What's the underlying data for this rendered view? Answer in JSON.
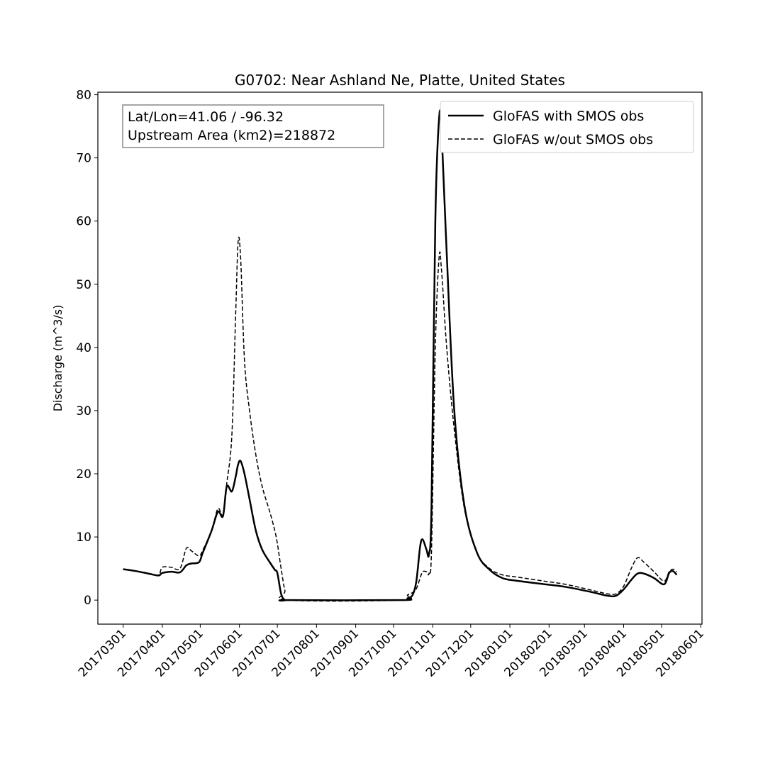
{
  "chart_data": {
    "type": "line",
    "title": "G0702: Near Ashland Ne, Platte, United States",
    "xlabel": "",
    "ylabel": "Discharge (m^3/s)",
    "xlim": [
      "20170209",
      "20180602"
    ],
    "ylim": [
      -3.8,
      80.4
    ],
    "grid": false,
    "legend_position": "top-right",
    "yticks": [
      0,
      10,
      20,
      30,
      40,
      50,
      60,
      70,
      80
    ],
    "xticks": [
      "20170301",
      "20170401",
      "20170501",
      "20170601",
      "20170701",
      "20170801",
      "20170901",
      "20171001",
      "20171101",
      "20171201",
      "20180101",
      "20180201",
      "20180301",
      "20180401",
      "20180501",
      "20180601"
    ],
    "annotation": [
      "Lat/Lon=41.06 / -96.32",
      "Upstream Area (km2)=218872"
    ],
    "x": [
      "20170301",
      "20170311",
      "20170321",
      "20170329",
      "20170401",
      "20170408",
      "20170415",
      "20170420",
      "20170424",
      "20170430",
      "20170503",
      "20170510",
      "20170515",
      "20170519",
      "20170522",
      "20170526",
      "20170529",
      "20170531",
      "20170602",
      "20170605",
      "20170609",
      "20170614",
      "20170619",
      "20170625",
      "20170629",
      "20170701",
      "20170704",
      "20170707",
      "20170710",
      "20171007",
      "20171012",
      "20171016",
      "20171019",
      "20171022",
      "20171024",
      "20171027",
      "20171029",
      "20171031",
      "20171103",
      "20171106",
      "20171108",
      "20171112",
      "20171118",
      "20171126",
      "20171206",
      "20171216",
      "20171226",
      "20180105",
      "20180125",
      "20180214",
      "20180306",
      "20180319",
      "20180326",
      "20180401",
      "20180407",
      "20180412",
      "20180417",
      "20180425",
      "20180503",
      "20180507",
      "20180510",
      "20180513"
    ],
    "series": [
      {
        "name": "GloFAS with SMOS obs",
        "style": "solid",
        "color": "#000000",
        "values": [
          4.9,
          4.6,
          4.2,
          3.9,
          4.3,
          4.5,
          4.4,
          5.5,
          5.8,
          6.0,
          7.5,
          11,
          14,
          13.3,
          18,
          17.2,
          19.5,
          21.5,
          22,
          20,
          16,
          11,
          8,
          6,
          4.8,
          4.3,
          1,
          0,
          0,
          0,
          0.3,
          0.8,
          3,
          8.5,
          9.6,
          8,
          7.3,
          15,
          60,
          76.3,
          74,
          55,
          30,
          15,
          7.5,
          4.8,
          3.5,
          3.1,
          2.6,
          2.1,
          1.3,
          0.7,
          0.7,
          1.7,
          3.2,
          4.2,
          4.2,
          3.5,
          2.5,
          4.3,
          4.6,
          4.0
        ]
      },
      {
        "name": "GloFAS w/out SMOS obs",
        "style": "dashed",
        "color": "#000000",
        "values": [
          4.9,
          4.6,
          4.2,
          4.0,
          5.2,
          5.2,
          5.0,
          8.2,
          7.8,
          7.0,
          7.9,
          11,
          14.5,
          13.5,
          18.5,
          26,
          45,
          56.8,
          54,
          38,
          30,
          23,
          18,
          14,
          11,
          9,
          5,
          1.5,
          0,
          0,
          0.8,
          1.2,
          1.8,
          3.5,
          4.5,
          4.5,
          4.2,
          8,
          40,
          54.3,
          52,
          40,
          27,
          14.5,
          7.5,
          5,
          4.0,
          3.7,
          3.1,
          2.5,
          1.6,
          1.0,
          1.0,
          2.2,
          5.0,
          6.7,
          6.0,
          4.5,
          3.0,
          4.5,
          4.9,
          4.5
        ]
      }
    ]
  }
}
